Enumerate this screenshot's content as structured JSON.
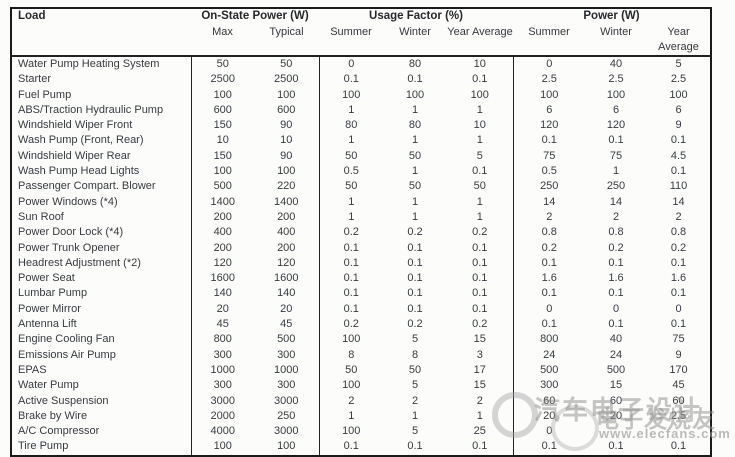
{
  "table": {
    "group_headers": [
      {
        "label": "Load"
      },
      {
        "label": "On-State Power (W)"
      },
      {
        "label": "Usage Factor (%)"
      },
      {
        "label": "Power (W)"
      }
    ],
    "sub_headers": [
      "Max",
      "Typical",
      "Summer",
      "Winter",
      "Year Average",
      "Summer",
      "Winter",
      "Year Average"
    ],
    "rows": [
      {
        "load": "Water Pump Heating System",
        "values": [
          "50",
          "50",
          "0",
          "80",
          "10",
          "0",
          "40",
          "5"
        ]
      },
      {
        "load": "Starter",
        "values": [
          "2500",
          "2500",
          "0.1",
          "0.1",
          "0.1",
          "2.5",
          "2.5",
          "2.5"
        ]
      },
      {
        "load": "Fuel Pump",
        "values": [
          "100",
          "100",
          "100",
          "100",
          "100",
          "100",
          "100",
          "100"
        ]
      },
      {
        "load": "ABS/Traction Hydraulic Pump",
        "values": [
          "600",
          "600",
          "1",
          "1",
          "1",
          "6",
          "6",
          "6"
        ]
      },
      {
        "load": "Windshield Wiper Front",
        "values": [
          "150",
          "90",
          "80",
          "80",
          "10",
          "120",
          "120",
          "9"
        ]
      },
      {
        "load": "Wash Pump (Front, Rear)",
        "values": [
          "10",
          "10",
          "1",
          "1",
          "1",
          "0.1",
          "0.1",
          "0.1"
        ]
      },
      {
        "load": "Windshield Wiper Rear",
        "values": [
          "150",
          "90",
          "50",
          "50",
          "5",
          "75",
          "75",
          "4.5"
        ]
      },
      {
        "load": "Wash Pump Head Lights",
        "values": [
          "100",
          "100",
          "0.5",
          "1",
          "0.1",
          "0.5",
          "1",
          "0.1"
        ]
      },
      {
        "load": "Passenger Compart. Blower",
        "values": [
          "500",
          "220",
          "50",
          "50",
          "50",
          "250",
          "250",
          "110"
        ]
      },
      {
        "load": "Power Windows (*4)",
        "values": [
          "1400",
          "1400",
          "1",
          "1",
          "1",
          "14",
          "14",
          "14"
        ]
      },
      {
        "load": "Sun Roof",
        "values": [
          "200",
          "200",
          "1",
          "1",
          "1",
          "2",
          "2",
          "2"
        ]
      },
      {
        "load": "Power Door Lock (*4)",
        "values": [
          "400",
          "400",
          "0.2",
          "0.2",
          "0.2",
          "0.8",
          "0.8",
          "0.8"
        ]
      },
      {
        "load": "Power Trunk Opener",
        "values": [
          "200",
          "200",
          "0.1",
          "0.1",
          "0.1",
          "0.2",
          "0.2",
          "0.2"
        ]
      },
      {
        "load": "Headrest Adjustment (*2)",
        "values": [
          "120",
          "120",
          "0.1",
          "0.1",
          "0.1",
          "0.1",
          "0.1",
          "0.1"
        ]
      },
      {
        "load": "Power Seat",
        "values": [
          "1600",
          "1600",
          "0.1",
          "0.1",
          "0.1",
          "1.6",
          "1.6",
          "1.6"
        ]
      },
      {
        "load": "Lumbar Pump",
        "values": [
          "140",
          "140",
          "0.1",
          "0.1",
          "0.1",
          "0.1",
          "0.1",
          "0.1"
        ]
      },
      {
        "load": "Power Mirror",
        "values": [
          "20",
          "20",
          "0.1",
          "0.1",
          "0.1",
          "0",
          "0",
          "0"
        ]
      },
      {
        "load": "Antenna Lift",
        "values": [
          "45",
          "45",
          "0.2",
          "0.2",
          "0.2",
          "0.1",
          "0.1",
          "0.1"
        ]
      },
      {
        "load": "Engine Cooling Fan",
        "values": [
          "800",
          "500",
          "100",
          "5",
          "15",
          "800",
          "40",
          "75"
        ]
      },
      {
        "load": "Emissions Air Pump",
        "values": [
          "300",
          "300",
          "8",
          "8",
          "3",
          "24",
          "24",
          "9"
        ]
      },
      {
        "load": "EPAS",
        "values": [
          "1000",
          "1000",
          "50",
          "50",
          "17",
          "500",
          "500",
          "170"
        ]
      },
      {
        "load": "Water Pump",
        "values": [
          "300",
          "300",
          "100",
          "5",
          "15",
          "300",
          "15",
          "45"
        ]
      },
      {
        "load": "Active Suspension",
        "values": [
          "3000",
          "3000",
          "2",
          "2",
          "2",
          "60",
          "60",
          "60"
        ]
      },
      {
        "load": "Brake by Wire",
        "values": [
          "2000",
          "250",
          "1",
          "1",
          "1",
          "20",
          "20",
          "2.5"
        ]
      },
      {
        "load": "A/C Compressor",
        "values": [
          "4000",
          "3000",
          "100",
          "5",
          "25",
          "0",
          "",
          ""
        ]
      },
      {
        "load": "Tire Pump",
        "values": [
          "100",
          "100",
          "0.1",
          "0.1",
          "0.1",
          "0.1",
          "0.1",
          "0.1"
        ]
      }
    ]
  },
  "watermark": {
    "stamp1": "汽车电子设计",
    "stamp2": "电子发烧友",
    "url": "www.elecfans.com"
  }
}
